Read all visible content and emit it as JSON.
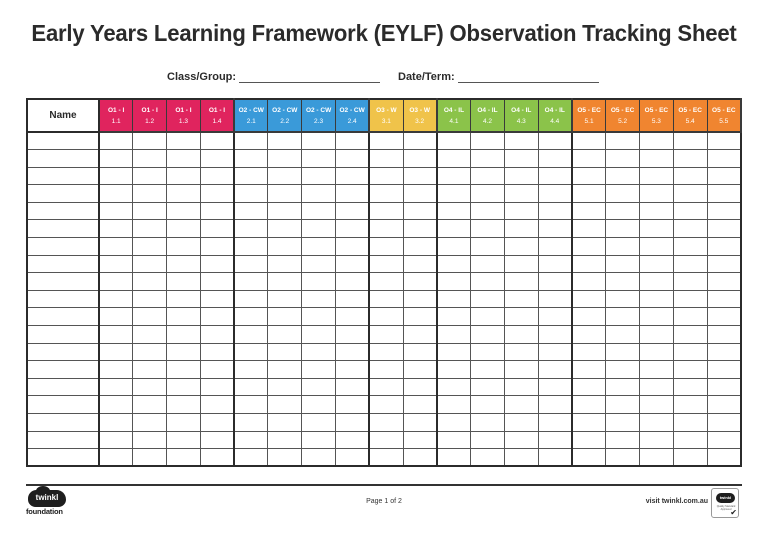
{
  "document": {
    "title": "Early Years Learning Framework (EYLF) Observation Tracking Sheet",
    "fields": {
      "class_group_label": "Class/Group:",
      "class_group_value": "",
      "date_term_label": "Date/Term:",
      "date_term_value": ""
    }
  },
  "table": {
    "name_header": "Name",
    "row_count": 19,
    "groups": [
      {
        "code": "O1 - I",
        "color": "#E0245E",
        "outcomes": [
          "1.1",
          "1.2",
          "1.3",
          "1.4"
        ]
      },
      {
        "code": "O2 - CW",
        "color": "#3A9AD9",
        "outcomes": [
          "2.1",
          "2.2",
          "2.3",
          "2.4"
        ]
      },
      {
        "code": "O3 - W",
        "color": "#F0C34A",
        "outcomes": [
          "3.1",
          "3.2"
        ]
      },
      {
        "code": "O4 - IL",
        "color": "#8BC34A",
        "outcomes": [
          "4.1",
          "4.2",
          "4.3",
          "4.4"
        ]
      },
      {
        "code": "O5 - EC",
        "color": "#F08530",
        "outcomes": [
          "5.1",
          "5.2",
          "5.3",
          "5.4",
          "5.5"
        ]
      }
    ],
    "headers": [
      {
        "code": "O1 - I",
        "num": "1.1"
      },
      {
        "code": "O1 - I",
        "num": "1.2"
      },
      {
        "code": "O1 - I",
        "num": "1.3"
      },
      {
        "code": "O1 - I",
        "num": "1.4"
      },
      {
        "code": "O2 - CW",
        "num": "2.1"
      },
      {
        "code": "O2 - CW",
        "num": "2.2"
      },
      {
        "code": "O2 - CW",
        "num": "2.3"
      },
      {
        "code": "O2 - CW",
        "num": "2.4"
      },
      {
        "code": "O3 - W",
        "num": "3.1"
      },
      {
        "code": "O3 - W",
        "num": "3.2"
      },
      {
        "code": "O4 - IL",
        "num": "4.1"
      },
      {
        "code": "O4 - IL",
        "num": "4.2"
      },
      {
        "code": "O4 - IL",
        "num": "4.3"
      },
      {
        "code": "O4 - IL",
        "num": "4.4"
      },
      {
        "code": "O5 - EC",
        "num": "5.1"
      },
      {
        "code": "O5 - EC",
        "num": "5.2"
      },
      {
        "code": "O5 - EC",
        "num": "5.3"
      },
      {
        "code": "O5 - EC",
        "num": "5.4"
      },
      {
        "code": "O5 - EC",
        "num": "5.5"
      }
    ]
  },
  "footer": {
    "logo_text": "twinkl",
    "logo_sub": "foundation",
    "page": "Page 1 of 2",
    "visit": "visit twinkl.com.au",
    "badge_logo": "twinkl",
    "badge_text": "Quality Standard Approved",
    "badge_icon": "check-icon"
  }
}
